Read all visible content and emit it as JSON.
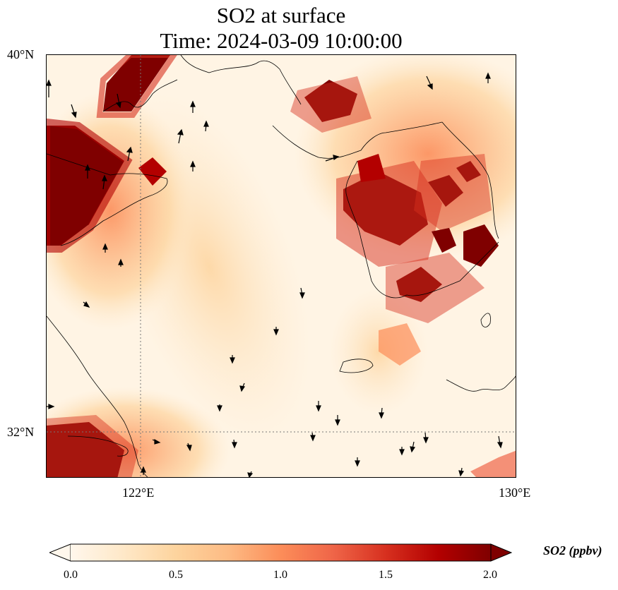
{
  "title": {
    "line1": "SO2 at surface",
    "line2": "Time: 2024-03-09 10:00:00"
  },
  "axes": {
    "lat_labels": [
      "40°N",
      "32°N"
    ],
    "lon_labels": [
      "122°E",
      "130°E"
    ],
    "lon_range": [
      120,
      130
    ],
    "lat_range": [
      31,
      40
    ]
  },
  "colorbar": {
    "label": "SO2 (ppbv)",
    "ticks": [
      "0.0",
      "0.5",
      "1.0",
      "1.5",
      "2.0"
    ],
    "range": [
      0.0,
      2.0
    ],
    "colormap": "OrRd",
    "extend": "both",
    "colors": [
      "#fff7ec",
      "#fee8c8",
      "#fdd49e",
      "#fdbb84",
      "#fc8d59",
      "#ef6548",
      "#d7301f",
      "#b30000",
      "#7f0000"
    ]
  },
  "layers": {
    "field": "SO2 concentration, surface",
    "overlays": [
      "coastlines",
      "wind vectors",
      "gridlines"
    ]
  }
}
